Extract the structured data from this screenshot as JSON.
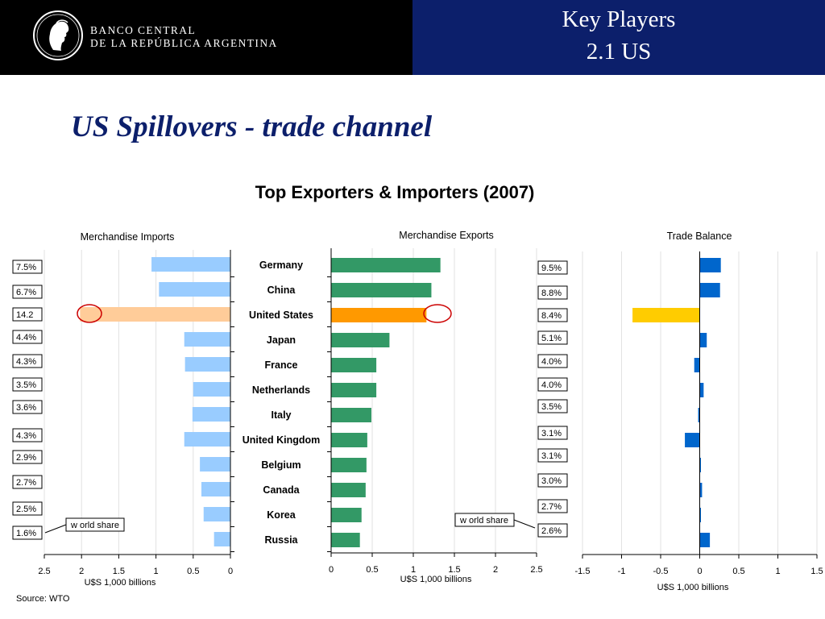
{
  "header": {
    "bank_line1": "BANCO CENTRAL",
    "bank_line2": "DE LA REPÚBLICA ARGENTINA",
    "section_title": "Key Players",
    "section_sub": "2.1 US",
    "logo_icon": "bcra-seal-icon"
  },
  "slide": {
    "subtitle": "US Spillovers - trade channel",
    "main_title": "Top Exporters & Importers (2007)",
    "source": "Source: WTO"
  },
  "colors": {
    "header_blue": "#0c1f6b",
    "imports_bar": "#99ccff",
    "imports_highlight": "#ffcc99",
    "exports_bar": "#339966",
    "exports_highlight": "#ff9900",
    "balance_bar": "#0066cc",
    "balance_highlight": "#ffcc00",
    "circle": "#cc0000"
  },
  "chart_data": [
    {
      "type": "bar",
      "orientation": "horizontal",
      "title": "Merchandise Imports",
      "xlabel": "U$S 1,000 billions",
      "xlim": [
        0,
        2.5
      ],
      "reversed_axis": true,
      "ticks": [
        "2.5",
        "2",
        "1.5",
        "1",
        "0.5",
        "0"
      ],
      "categories": [
        "Germany",
        "China",
        "United States",
        "Japan",
        "France",
        "Netherlands",
        "Italy",
        "United Kingdom",
        "Belgium",
        "Canada",
        "Korea",
        "Russia"
      ],
      "values": [
        1.06,
        0.96,
        2.02,
        0.62,
        0.61,
        0.5,
        0.51,
        0.62,
        0.41,
        0.39,
        0.36,
        0.22
      ],
      "highlight": "United States",
      "share_labels": [
        "7.5%",
        "6.7%",
        "14.2",
        "4.4%",
        "4.3%",
        "3.5%",
        "3.6%",
        "4.3%",
        "2.9%",
        "2.7%",
        "2.5%",
        "1.6%"
      ],
      "annotation": "w orld share"
    },
    {
      "type": "bar",
      "orientation": "horizontal",
      "title": "Merchandise Exports",
      "xlabel": "U$S 1,000 billions",
      "xlim": [
        0,
        2.5
      ],
      "ticks": [
        "0",
        "0.5",
        "1",
        "1.5",
        "2",
        "2.5"
      ],
      "categories": [
        "Germany",
        "China",
        "United States",
        "Japan",
        "France",
        "Netherlands",
        "Italy",
        "United Kingdom",
        "Belgium",
        "Canada",
        "Korea",
        "Russia"
      ],
      "values": [
        1.33,
        1.22,
        1.16,
        0.71,
        0.55,
        0.55,
        0.49,
        0.44,
        0.43,
        0.42,
        0.37,
        0.35
      ],
      "highlight": "United States",
      "share_labels": [
        "9.5%",
        "8.8%",
        "8.4%",
        "5.1%",
        "4.0%",
        "4.0%",
        "3.5%",
        "3.1%",
        "3.1%",
        "3.0%",
        "2.7%",
        "2.6%"
      ],
      "annotation": "w orld share"
    },
    {
      "type": "bar",
      "orientation": "horizontal",
      "title": "Trade Balance",
      "xlabel": "U$S 1,000 billions",
      "xlim": [
        -1.5,
        1.5
      ],
      "ticks": [
        "-1.5",
        "-1",
        "-0.5",
        "0",
        "0.5",
        "1",
        "1.5"
      ],
      "categories": [
        "Germany",
        "China",
        "United States",
        "Japan",
        "France",
        "Netherlands",
        "Italy",
        "United Kingdom",
        "Belgium",
        "Canada",
        "Korea",
        "Russia"
      ],
      "values": [
        0.27,
        0.26,
        -0.86,
        0.09,
        -0.07,
        0.05,
        -0.02,
        -0.19,
        0.01,
        0.03,
        0.01,
        0.13
      ],
      "highlight": "United States"
    }
  ]
}
